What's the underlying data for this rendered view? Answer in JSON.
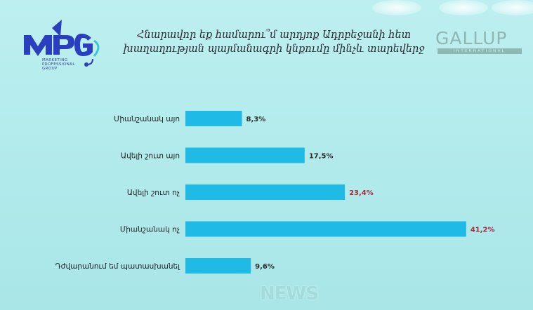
{
  "colors": {
    "bar": "#1fbbe6",
    "value_dark": "#2b2b2b",
    "value_red": "#a52a3a",
    "accent_logo": "#2a3fbf"
  },
  "logo": {
    "brand": "MPG",
    "sub": [
      "MARKETING",
      "PROFESSIONAL",
      "GROUP"
    ],
    "partner": "GALLUP",
    "partner_sub": "INTERNATIONAL"
  },
  "watermark": "NEWS",
  "chart_data": {
    "type": "bar",
    "orientation": "horizontal",
    "title_lines": [
      "Հնարավոր եք համարու՞մ արդյոք Ադրբեջանի հետ",
      "խաղաղության պայմանագրի կնքումը մինչև տարեվերջ"
    ],
    "categories": [
      "Միանշանակ այո",
      "Ավելի շուտ այո",
      "Ավելի շուտ ոչ",
      "Միանշանակ ոչ",
      "Դժվարանում եմ պատասխանել"
    ],
    "values": [
      8.3,
      17.5,
      23.4,
      41.2,
      9.6
    ],
    "value_labels": [
      "8,3%",
      "17,5%",
      "23,4%",
      "41,2%",
      "9,6%"
    ],
    "value_label_colors": [
      "dark",
      "dark",
      "red",
      "red",
      "dark"
    ],
    "unit": "%",
    "grid": false,
    "legend": "none"
  }
}
